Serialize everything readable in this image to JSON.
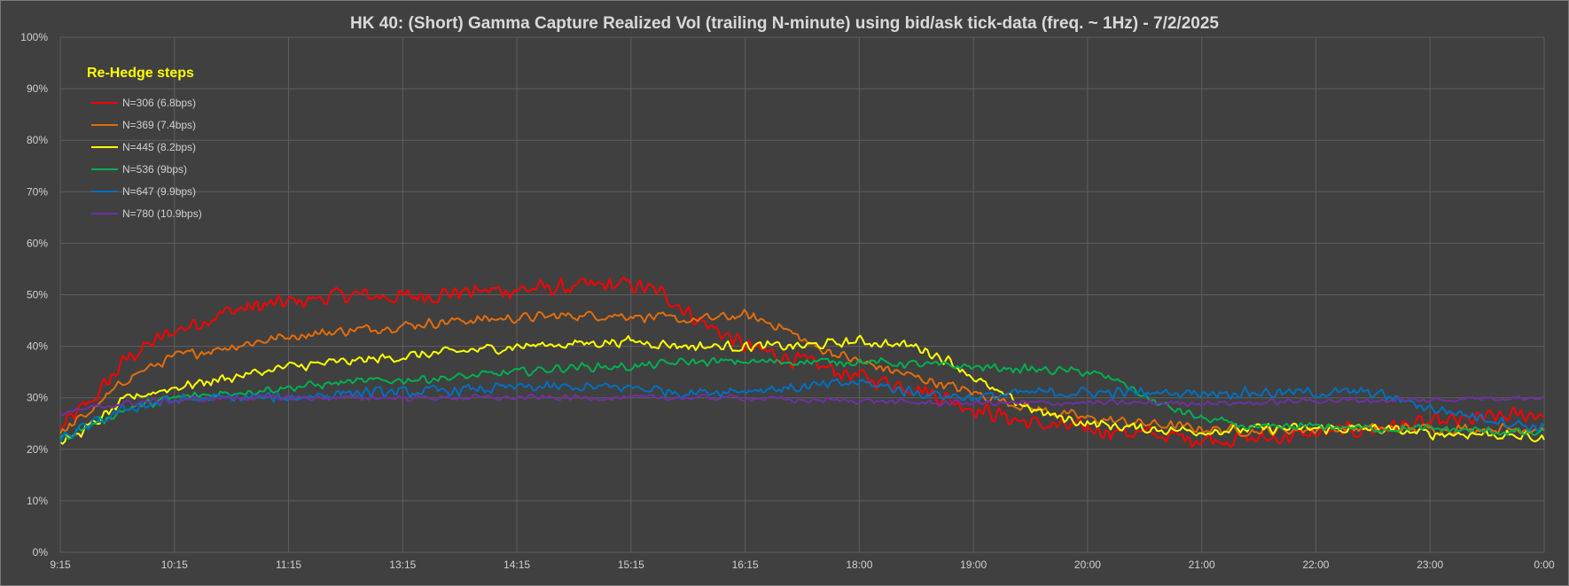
{
  "chart_data": {
    "type": "line",
    "title": "HK 40: (Short) Gamma Capture Realized Vol (trailing N-minute) using bid/ask tick-data (freq. ~ 1Hz) - 7/2/2025",
    "xlabel": "",
    "ylabel": "",
    "categories": [
      "9:15",
      "10:15",
      "11:15",
      "13:15",
      "14:15",
      "15:15",
      "16:15",
      "18:00",
      "19:00",
      "20:00",
      "21:00",
      "22:00",
      "23:00",
      "0:00"
    ],
    "yticks": [
      "0%",
      "10%",
      "20%",
      "30%",
      "40%",
      "50%",
      "60%",
      "70%",
      "80%",
      "90%",
      "100%"
    ],
    "ylim": [
      0,
      1
    ],
    "grid": true,
    "legend": {
      "title": "Re-Hedge steps",
      "position": "top-left"
    },
    "series": [
      {
        "name": "N=306 (6.8bps)",
        "color": "#ff0000",
        "noise": 0.02,
        "keypoints": [
          [
            0,
            0.24
          ],
          [
            0.3,
            0.3
          ],
          [
            0.6,
            0.38
          ],
          [
            1,
            0.43
          ],
          [
            1.5,
            0.47
          ],
          [
            2,
            0.485
          ],
          [
            2.5,
            0.5
          ],
          [
            3,
            0.495
          ],
          [
            3.5,
            0.505
          ],
          [
            4,
            0.51
          ],
          [
            4.5,
            0.515
          ],
          [
            5,
            0.52
          ],
          [
            5.3,
            0.5
          ],
          [
            5.6,
            0.45
          ],
          [
            6,
            0.4
          ],
          [
            6.5,
            0.37
          ],
          [
            7,
            0.34
          ],
          [
            7.5,
            0.32
          ],
          [
            8,
            0.28
          ],
          [
            8.5,
            0.25
          ],
          [
            9,
            0.24
          ],
          [
            9.5,
            0.23
          ],
          [
            10,
            0.22
          ],
          [
            10.5,
            0.22
          ],
          [
            11,
            0.23
          ],
          [
            11.5,
            0.24
          ],
          [
            12,
            0.25
          ],
          [
            12.5,
            0.26
          ],
          [
            13,
            0.27
          ]
        ]
      },
      {
        "name": "N=369 (7.4bps)",
        "color": "#e46c0a",
        "noise": 0.012,
        "keypoints": [
          [
            0,
            0.23
          ],
          [
            0.3,
            0.28
          ],
          [
            0.6,
            0.34
          ],
          [
            1,
            0.38
          ],
          [
            1.5,
            0.4
          ],
          [
            2,
            0.42
          ],
          [
            2.5,
            0.43
          ],
          [
            3,
            0.44
          ],
          [
            3.5,
            0.45
          ],
          [
            4,
            0.455
          ],
          [
            4.5,
            0.46
          ],
          [
            5,
            0.46
          ],
          [
            5.5,
            0.45
          ],
          [
            6,
            0.46
          ],
          [
            6.3,
            0.44
          ],
          [
            6.6,
            0.4
          ],
          [
            7,
            0.37
          ],
          [
            7.5,
            0.34
          ],
          [
            8,
            0.31
          ],
          [
            8.5,
            0.28
          ],
          [
            9,
            0.26
          ],
          [
            9.5,
            0.25
          ],
          [
            10,
            0.24
          ],
          [
            10.5,
            0.235
          ],
          [
            11,
            0.24
          ],
          [
            11.5,
            0.24
          ],
          [
            12,
            0.24
          ],
          [
            12.5,
            0.24
          ],
          [
            13,
            0.24
          ]
        ]
      },
      {
        "name": "N=445 (8.2bps)",
        "color": "#ffff00",
        "noise": 0.012,
        "keypoints": [
          [
            0,
            0.21
          ],
          [
            0.3,
            0.25
          ],
          [
            0.6,
            0.3
          ],
          [
            1,
            0.32
          ],
          [
            1.5,
            0.34
          ],
          [
            2,
            0.36
          ],
          [
            2.5,
            0.37
          ],
          [
            3,
            0.38
          ],
          [
            3.5,
            0.39
          ],
          [
            4,
            0.4
          ],
          [
            4.5,
            0.405
          ],
          [
            5,
            0.41
          ],
          [
            5.5,
            0.4
          ],
          [
            6,
            0.4
          ],
          [
            6.5,
            0.4
          ],
          [
            7,
            0.41
          ],
          [
            7.5,
            0.4
          ],
          [
            7.8,
            0.37
          ],
          [
            8.2,
            0.31
          ],
          [
            8.6,
            0.27
          ],
          [
            9,
            0.25
          ],
          [
            9.5,
            0.24
          ],
          [
            10,
            0.235
          ],
          [
            10.5,
            0.24
          ],
          [
            11,
            0.24
          ],
          [
            11.5,
            0.24
          ],
          [
            12,
            0.23
          ],
          [
            12.5,
            0.23
          ],
          [
            13,
            0.22
          ]
        ]
      },
      {
        "name": "N=536 (9bps)",
        "color": "#00b050",
        "noise": 0.01,
        "keypoints": [
          [
            0,
            0.22
          ],
          [
            0.3,
            0.25
          ],
          [
            0.6,
            0.28
          ],
          [
            1,
            0.3
          ],
          [
            1.5,
            0.31
          ],
          [
            2,
            0.32
          ],
          [
            2.5,
            0.33
          ],
          [
            3,
            0.335
          ],
          [
            3.5,
            0.34
          ],
          [
            4,
            0.35
          ],
          [
            4.5,
            0.36
          ],
          [
            5,
            0.36
          ],
          [
            5.5,
            0.37
          ],
          [
            6,
            0.37
          ],
          [
            6.5,
            0.37
          ],
          [
            7,
            0.37
          ],
          [
            7.5,
            0.365
          ],
          [
            8,
            0.36
          ],
          [
            8.5,
            0.355
          ],
          [
            9,
            0.35
          ],
          [
            9.3,
            0.33
          ],
          [
            9.6,
            0.29
          ],
          [
            10,
            0.26
          ],
          [
            10.5,
            0.24
          ],
          [
            11,
            0.245
          ],
          [
            11.5,
            0.24
          ],
          [
            12,
            0.24
          ],
          [
            12.5,
            0.235
          ],
          [
            13,
            0.23
          ]
        ]
      },
      {
        "name": "N=647 (9.9bps)",
        "color": "#0070c0",
        "noise": 0.013,
        "keypoints": [
          [
            0,
            0.22
          ],
          [
            0.3,
            0.25
          ],
          [
            0.6,
            0.28
          ],
          [
            1,
            0.295
          ],
          [
            1.5,
            0.3
          ],
          [
            2,
            0.3
          ],
          [
            2.5,
            0.31
          ],
          [
            3,
            0.31
          ],
          [
            3.5,
            0.315
          ],
          [
            4,
            0.32
          ],
          [
            4.5,
            0.32
          ],
          [
            5,
            0.32
          ],
          [
            5.5,
            0.31
          ],
          [
            6,
            0.315
          ],
          [
            6.5,
            0.32
          ],
          [
            7,
            0.33
          ],
          [
            7.5,
            0.31
          ],
          [
            8,
            0.3
          ],
          [
            8.5,
            0.31
          ],
          [
            9,
            0.31
          ],
          [
            9.5,
            0.31
          ],
          [
            10,
            0.31
          ],
          [
            10.5,
            0.31
          ],
          [
            11,
            0.31
          ],
          [
            11.5,
            0.31
          ],
          [
            12,
            0.28
          ],
          [
            12.5,
            0.26
          ],
          [
            13,
            0.24
          ]
        ]
      },
      {
        "name": "N=780 (10.9bps)",
        "color": "#7030a0",
        "noise": 0.007,
        "keypoints": [
          [
            0,
            0.27
          ],
          [
            0.3,
            0.28
          ],
          [
            0.6,
            0.29
          ],
          [
            1,
            0.295
          ],
          [
            1.5,
            0.3
          ],
          [
            2,
            0.3
          ],
          [
            2.5,
            0.3
          ],
          [
            3,
            0.3
          ],
          [
            3.5,
            0.3
          ],
          [
            4,
            0.3
          ],
          [
            4.5,
            0.3
          ],
          [
            5,
            0.3
          ],
          [
            5.5,
            0.3
          ],
          [
            6,
            0.3
          ],
          [
            6.5,
            0.295
          ],
          [
            7,
            0.295
          ],
          [
            7.5,
            0.29
          ],
          [
            8,
            0.29
          ],
          [
            8.5,
            0.29
          ],
          [
            9,
            0.29
          ],
          [
            9.5,
            0.29
          ],
          [
            10,
            0.29
          ],
          [
            10.5,
            0.29
          ],
          [
            11,
            0.295
          ],
          [
            11.5,
            0.295
          ],
          [
            12,
            0.295
          ],
          [
            12.5,
            0.3
          ],
          [
            13,
            0.3
          ]
        ]
      }
    ]
  }
}
